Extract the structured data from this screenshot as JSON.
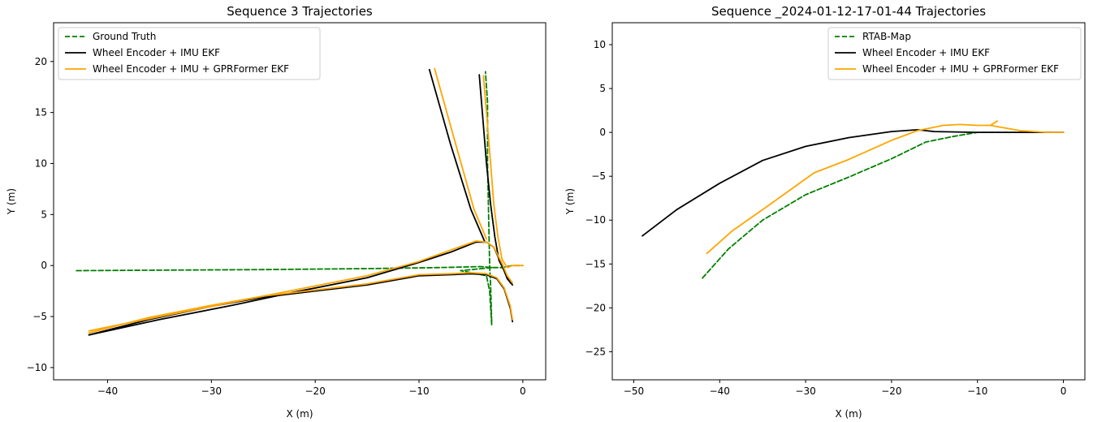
{
  "chart_data": [
    {
      "type": "line",
      "title": "Sequence 3 Trajectories",
      "xlabel": "X (m)",
      "ylabel": "Y (m)",
      "xlim": [
        -45.2,
        2.2
      ],
      "ylim": [
        -11.2,
        23.8
      ],
      "xticks": [
        -40,
        -30,
        -20,
        -10,
        0
      ],
      "yticks": [
        -10,
        -5,
        0,
        5,
        10,
        15,
        20
      ],
      "xtick_labels": [
        "−40",
        "−30",
        "−20",
        "−10",
        "0"
      ],
      "ytick_labels": [
        "−10",
        "−5",
        "0",
        "5",
        "10",
        "15",
        "20"
      ],
      "legend_position": "upper-left",
      "series": [
        {
          "name": "Ground Truth",
          "color": "#008000",
          "style": "dashed",
          "segments": [
            [
              [
                -43,
                -0.5
              ],
              [
                -35,
                -0.45
              ],
              [
                -25,
                -0.4
              ],
              [
                -15,
                -0.3
              ],
              [
                -8,
                -0.2
              ],
              [
                -4,
                -0.1
              ],
              [
                -3,
                -0.2
              ],
              [
                -2,
                -0.2
              ],
              [
                -1,
                0
              ],
              [
                0,
                0
              ]
            ],
            [
              [
                -3,
                -0.2
              ],
              [
                -4,
                -0.3
              ],
              [
                -6,
                -0.5
              ],
              [
                -5,
                -0.7
              ],
              [
                -3.5,
                -1.0
              ],
              [
                -3.2,
                -2.5
              ],
              [
                -3,
                -5.8
              ]
            ],
            [
              [
                -3,
                -5.5
              ],
              [
                -3.1,
                -2
              ],
              [
                -3.2,
                0
              ],
              [
                -3.3,
                5
              ],
              [
                -3.4,
                10
              ],
              [
                -3.4,
                16
              ],
              [
                -3.6,
                19
              ]
            ]
          ]
        },
        {
          "name": "Wheel Encoder + IMU EKF",
          "color": "#000000",
          "style": "solid",
          "segments": [
            [
              [
                -41.8,
                -6.8
              ],
              [
                -35,
                -5.3
              ],
              [
                -28,
                -3.9
              ],
              [
                -22,
                -2.6
              ],
              [
                -15,
                -1.2
              ],
              [
                -10,
                0.3
              ],
              [
                -7,
                1.3
              ],
              [
                -4.5,
                2.3
              ],
              [
                -3.5,
                2.3
              ],
              [
                -2.8,
                1.8
              ],
              [
                -2,
                0
              ],
              [
                -1.5,
                -1.3
              ],
              [
                -1,
                -1.9
              ]
            ],
            [
              [
                -41.8,
                -6.8
              ],
              [
                -36,
                -5.3
              ],
              [
                -30,
                -4.0
              ],
              [
                -25,
                -3.1
              ],
              [
                -20,
                -2.5
              ],
              [
                -15,
                -1.9
              ],
              [
                -10,
                -1.0
              ],
              [
                -7,
                -0.9
              ],
              [
                -5,
                -0.8
              ],
              [
                -3.5,
                -0.9
              ],
              [
                -2.5,
                -1.3
              ],
              [
                -1.8,
                -2.3
              ],
              [
                -1.2,
                -4.2
              ],
              [
                -1,
                -5.5
              ]
            ],
            [
              [
                -9,
                19.2
              ],
              [
                -7,
                12
              ],
              [
                -5,
                5.5
              ],
              [
                -3.7,
                2.4
              ]
            ],
            [
              [
                -4.2,
                18.7
              ],
              [
                -3.9,
                15
              ],
              [
                -3.5,
                10
              ],
              [
                -3.1,
                6
              ],
              [
                -2.7,
                2.8
              ],
              [
                -2.3,
                0.5
              ],
              [
                -1.8,
                -0.5
              ],
              [
                -1.2,
                -1.7
              ]
            ]
          ]
        },
        {
          "name": "Wheel Encoder + IMU + GPRFormer EKF",
          "color": "#ffa500",
          "style": "solid",
          "segments": [
            [
              [
                -41.8,
                -6.4
              ],
              [
                -35,
                -5.0
              ],
              [
                -28,
                -3.6
              ],
              [
                -22,
                -2.4
              ],
              [
                -15,
                -1.0
              ],
              [
                -10,
                0.4
              ],
              [
                -7,
                1.5
              ],
              [
                -4.5,
                2.4
              ],
              [
                -3.5,
                2.3
              ],
              [
                -2.8,
                1.8
              ],
              [
                -2,
                0.2
              ],
              [
                -1.5,
                -1.0
              ],
              [
                -1,
                -1.7
              ]
            ],
            [
              [
                -41.8,
                -6.6
              ],
              [
                -36,
                -5.1
              ],
              [
                -30,
                -3.9
              ],
              [
                -25,
                -3.0
              ],
              [
                -20,
                -2.4
              ],
              [
                -15,
                -1.8
              ],
              [
                -10,
                -0.9
              ],
              [
                -7,
                -0.8
              ],
              [
                -5,
                -0.7
              ],
              [
                -3.5,
                -0.8
              ],
              [
                -2.5,
                -1.2
              ],
              [
                -1.8,
                -2.2
              ],
              [
                -1.2,
                -4.0
              ],
              [
                -1,
                -5.3
              ]
            ],
            [
              [
                -8.5,
                19.3
              ],
              [
                -6.5,
                12
              ],
              [
                -4.7,
                5.5
              ],
              [
                -3.5,
                2.6
              ]
            ],
            [
              [
                -3.8,
                18.6
              ],
              [
                -3.5,
                15
              ],
              [
                -3.1,
                10
              ],
              [
                -2.8,
                6
              ],
              [
                -2.4,
                2.8
              ],
              [
                -2,
                0.6
              ],
              [
                -1.5,
                -0.2
              ],
              [
                -1,
                0
              ],
              [
                0,
                0
              ]
            ]
          ]
        }
      ]
    },
    {
      "type": "line",
      "title": "Sequence _2024-01-12-17-01-44 Trajectories",
      "xlabel": "X (m)",
      "ylabel": "Y (m)",
      "xlim": [
        -52.5,
        2.5
      ],
      "ylim": [
        -28.2,
        12.5
      ],
      "xticks": [
        -50,
        -40,
        -30,
        -20,
        -10,
        0
      ],
      "yticks": [
        -25,
        -20,
        -15,
        -10,
        -5,
        0,
        5,
        10
      ],
      "xtick_labels": [
        "−50",
        "−40",
        "−30",
        "−20",
        "−10",
        "0"
      ],
      "ytick_labels": [
        "−25",
        "−20",
        "−15",
        "−10",
        "−5",
        "0",
        "5",
        "10"
      ],
      "legend_position": "upper-right",
      "series": [
        {
          "name": "RTAB-Map",
          "color": "#008000",
          "style": "dashed",
          "segments": [
            [
              [
                -42,
                -16.6
              ],
              [
                -39,
                -13.3
              ],
              [
                -35,
                -10.0
              ],
              [
                -30,
                -7.1
              ],
              [
                -25,
                -5.1
              ],
              [
                -20,
                -3.0
              ],
              [
                -16,
                -1.1
              ],
              [
                -13,
                -0.5
              ],
              [
                -10,
                0
              ],
              [
                -5,
                0
              ],
              [
                0,
                0
              ]
            ]
          ]
        },
        {
          "name": "Wheel Encoder + IMU EKF",
          "color": "#000000",
          "style": "solid",
          "segments": [
            [
              [
                -49,
                -11.8
              ],
              [
                -45,
                -8.8
              ],
              [
                -40,
                -5.8
              ],
              [
                -35,
                -3.2
              ],
              [
                -30,
                -1.6
              ],
              [
                -25,
                -0.6
              ],
              [
                -20,
                0.1
              ],
              [
                -17,
                0.3
              ],
              [
                -15,
                0.1
              ],
              [
                -10,
                0
              ],
              [
                -5,
                0
              ],
              [
                0,
                0
              ]
            ]
          ]
        },
        {
          "name": "Wheel Encoder + IMU + GPRFormer EKF",
          "color": "#ffa500",
          "style": "solid",
          "segments": [
            [
              [
                -41.5,
                -13.8
              ],
              [
                -38.5,
                -11.2
              ],
              [
                -35,
                -8.8
              ],
              [
                -32,
                -6.7
              ],
              [
                -29,
                -4.6
              ],
              [
                -25,
                -3.1
              ],
              [
                -20,
                -0.9
              ],
              [
                -17,
                0.2
              ],
              [
                -14,
                0.8
              ],
              [
                -12,
                0.9
              ],
              [
                -10,
                0.8
              ],
              [
                -8.5,
                0.8
              ],
              [
                -7.7,
                1.3
              ]
            ],
            [
              [
                -8.5,
                0.8
              ],
              [
                -5,
                0.2
              ],
              [
                -2,
                0
              ],
              [
                0,
                0
              ]
            ]
          ]
        }
      ]
    }
  ]
}
